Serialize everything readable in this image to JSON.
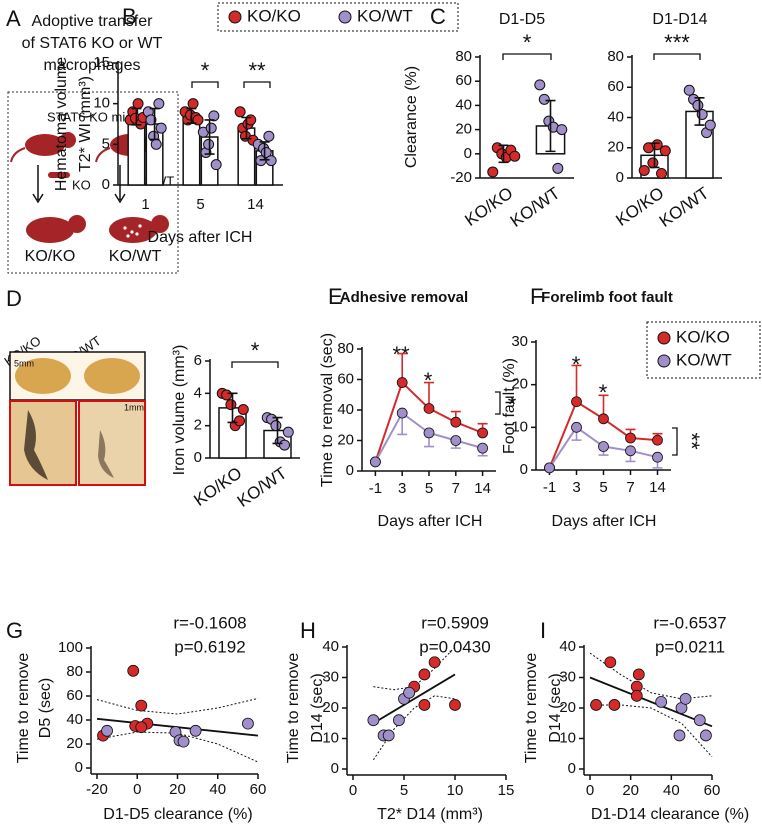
{
  "panel_labels": [
    "A",
    "B",
    "C",
    "D",
    "E",
    "F",
    "G",
    "H",
    "I"
  ],
  "diagram_a": {
    "title_lines": [
      "Adoptive transfer",
      "of STAT6 KO or WT",
      "macrophages"
    ],
    "box_title": "STAT6 KO mice",
    "ko": "KO",
    "wt": "WT",
    "groups": [
      "KO/KO",
      "KO/WT"
    ]
  },
  "images_d": {
    "groups": [
      "KO/KO",
      "KO/WT"
    ],
    "scale_top": "5mm",
    "scale_bottom": "1mm"
  },
  "chart_data": [
    {
      "type": "bar",
      "ylabel": [
        "Hematoma volume",
        "T2* WI (mm³)"
      ],
      "xlabel": "Days after ICH",
      "categories": [
        "1",
        "5",
        "14"
      ],
      "series": [
        {
          "name": "KO/KO",
          "color": "#d42a2a",
          "values": [
            8.4,
            8.5,
            7.0
          ],
          "errors": [
            1.0,
            0.9,
            1.3
          ],
          "points": [
            [
              8,
              9,
              8.2,
              10,
              7.5,
              8.3
            ],
            [
              9,
              8,
              8.6,
              10,
              8.3,
              8
            ],
            [
              9,
              7,
              6,
              7.5,
              8,
              5.5
            ]
          ]
        },
        {
          "name": "KO/WT",
          "color": "#a18fca",
          "values": [
            7.5,
            5.9,
            4.2
          ],
          "errors": [
            1.9,
            2.1,
            1.1
          ],
          "points": [
            [
              9,
              8,
              6,
              5,
              10,
              7
            ],
            [
              6.5,
              4,
              5,
              7,
              8.5,
              2.5
            ],
            [
              5,
              3,
              4.5,
              4,
              6,
              3
            ]
          ]
        }
      ],
      "ylim": [
        0,
        15
      ],
      "yticks": [
        0,
        5,
        10,
        15
      ],
      "significance": [
        "*",
        "**"
      ]
    },
    {
      "type": "bar",
      "title": "D1-D5",
      "ylabel": [
        "Clearance (%)"
      ],
      "categories": [
        "KO/KO",
        "KO/WT"
      ],
      "colors": [
        "#d42a2a",
        "#a18fca"
      ],
      "values": [
        0,
        23
      ],
      "errors": [
        7,
        21
      ],
      "points": [
        [
          -15,
          5,
          0,
          -3,
          3,
          -2
        ],
        [
          57,
          45,
          27,
          22,
          -12,
          20
        ]
      ],
      "ylim": [
        -20,
        80
      ],
      "yticks": [
        -20,
        0,
        20,
        40,
        60,
        80
      ],
      "significance": [
        "*"
      ]
    },
    {
      "type": "bar",
      "title": "D1-D14",
      "categories": [
        "KO/KO",
        "KO/WT"
      ],
      "colors": [
        "#d42a2a",
        "#a18fca"
      ],
      "values": [
        15,
        44
      ],
      "errors": [
        8,
        9
      ],
      "points": [
        [
          5,
          20,
          10,
          22,
          3,
          18
        ],
        [
          58,
          52,
          48,
          42,
          30,
          35
        ]
      ],
      "ylim": [
        0,
        80
      ],
      "yticks": [
        0,
        20,
        40,
        60,
        80
      ],
      "significance": [
        "***"
      ]
    },
    {
      "type": "bar",
      "ylabel": [
        "Iron volume (mm³)"
      ],
      "categories": [
        "KO/KO",
        "KO/WT"
      ],
      "colors": [
        "#d42a2a",
        "#a18fca"
      ],
      "values": [
        3.1,
        1.7
      ],
      "errors": [
        0.9,
        0.8
      ],
      "points": [
        [
          4,
          3.9,
          3.3,
          2,
          2.3,
          3
        ],
        [
          2.5,
          2.4,
          2,
          1,
          0.8,
          1.6
        ]
      ],
      "ylim": [
        0,
        6
      ],
      "yticks": [
        0,
        2,
        4,
        6
      ],
      "significance": [
        "*"
      ]
    },
    {
      "type": "line",
      "title": "Adhesive removal",
      "ylabel": [
        "Time to removal (sec)"
      ],
      "xlabel": "Days after ICH",
      "categories": [
        "-1",
        "3",
        "5",
        "7",
        "14"
      ],
      "series": [
        {
          "name": "KO/KO",
          "color": "#d42a2a",
          "values": [
            6,
            58,
            41,
            32,
            25
          ],
          "errors": [
            1,
            19,
            17,
            7,
            6
          ]
        },
        {
          "name": "KO/WT",
          "color": "#a18fca",
          "values": [
            6,
            38,
            25,
            20,
            15
          ],
          "errors": [
            1,
            14,
            9,
            5,
            5
          ]
        }
      ],
      "ylim": [
        0,
        80
      ],
      "yticks": [
        0,
        20,
        40,
        60,
        80
      ],
      "significance": [
        "**",
        "*",
        "*"
      ]
    },
    {
      "type": "line",
      "title": "Forelimb foot fault",
      "ylabel": [
        "Foot fault (%)"
      ],
      "xlabel": "Days after ICH",
      "categories": [
        "-1",
        "3",
        "5",
        "7",
        "14"
      ],
      "series": [
        {
          "name": "KO/KO",
          "color": "#d42a2a",
          "values": [
            0.5,
            16,
            12,
            7.5,
            7
          ],
          "errors": [
            0.5,
            8.5,
            5.5,
            2,
            1.5
          ]
        },
        {
          "name": "KO/WT",
          "color": "#a18fca",
          "values": [
            0.5,
            10,
            5.5,
            4.5,
            3
          ],
          "errors": [
            0.5,
            3,
            2,
            2.5,
            2.5
          ]
        }
      ],
      "ylim": [
        0,
        30
      ],
      "yticks": [
        0,
        10,
        20,
        30
      ],
      "significance": [
        "*",
        "*",
        "**"
      ]
    },
    {
      "type": "scatter",
      "ylabel": [
        "Time to remove",
        "D5 (sec)"
      ],
      "xlabel": "D1-D5 clearance (%)",
      "stats": [
        "r=-0.1608",
        "p=0.6192"
      ],
      "series": [
        {
          "color": "#d42a2a",
          "x": [
            -17,
            -2,
            2,
            -1,
            5,
            2
          ],
          "y": [
            27,
            81,
            52,
            35,
            37,
            34
          ]
        },
        {
          "color": "#a18fca",
          "x": [
            -15,
            19,
            21,
            23,
            29,
            55
          ],
          "y": [
            31,
            30,
            23,
            22,
            31,
            37
          ]
        }
      ],
      "fit": {
        "x": [
          -20,
          60
        ],
        "y": [
          41,
          27
        ]
      },
      "ci": {
        "x": [
          -20,
          0,
          20,
          40,
          60
        ],
        "upper": [
          57,
          48,
          45,
          50,
          58
        ],
        "lower": [
          24,
          30,
          29,
          20,
          5
        ]
      },
      "xlim": [
        -20,
        60
      ],
      "xticks": [
        -20,
        0,
        20,
        40,
        60
      ],
      "ylim": [
        0,
        100
      ],
      "yticks": [
        0,
        20,
        40,
        60,
        80,
        100
      ]
    },
    {
      "type": "scatter",
      "ylabel": [
        "Time to remove",
        "D14 (sec)"
      ],
      "xlabel": "T2* D14 (mm³)",
      "stats": [
        "r=0.5909",
        "p=0.0430"
      ],
      "series": [
        {
          "color": "#d42a2a",
          "x": [
            5.5,
            6,
            7,
            8,
            7,
            10
          ],
          "y": [
            25,
            27,
            31,
            35,
            21,
            21
          ]
        },
        {
          "color": "#a18fca",
          "x": [
            2,
            3,
            3.5,
            4.5,
            5,
            5.5
          ],
          "y": [
            16,
            11,
            11,
            16,
            23,
            25
          ]
        }
      ],
      "fit": {
        "x": [
          2,
          10
        ],
        "y": [
          15,
          31
        ]
      },
      "ci": {
        "x": [
          2,
          4,
          6,
          8,
          10
        ],
        "upper": [
          27,
          26,
          27,
          33,
          40
        ],
        "lower": [
          3,
          13,
          20,
          24,
          23
        ]
      },
      "xlim": [
        0,
        15
      ],
      "xticks": [
        0,
        5,
        10,
        15
      ],
      "ylim": [
        0,
        40
      ],
      "yticks": [
        0,
        10,
        20,
        30,
        40
      ]
    },
    {
      "type": "scatter",
      "ylabel": [
        "Time to remove",
        "D14 (sec)"
      ],
      "xlabel": "D1-D14 clearance (%)",
      "stats": [
        "r=-0.6537",
        "p=0.0211"
      ],
      "series": [
        {
          "color": "#d42a2a",
          "x": [
            3,
            12,
            23,
            24,
            10,
            23
          ],
          "y": [
            21,
            21,
            27,
            31,
            35,
            24
          ]
        },
        {
          "color": "#a18fca",
          "x": [
            35,
            44,
            45,
            47,
            54,
            57
          ],
          "y": [
            22,
            11,
            20,
            23,
            16,
            11
          ]
        }
      ],
      "fit": {
        "x": [
          0,
          60
        ],
        "y": [
          30,
          14
        ]
      },
      "ci": {
        "x": [
          0,
          15,
          30,
          45,
          60
        ],
        "upper": [
          38,
          31,
          25,
          23,
          24
        ],
        "lower": [
          21,
          21,
          20,
          15,
          4
        ]
      },
      "xlim": [
        0,
        60
      ],
      "xticks": [
        0,
        20,
        40,
        60
      ],
      "ylim": [
        0,
        40
      ],
      "yticks": [
        0,
        10,
        20,
        30,
        40
      ]
    }
  ]
}
